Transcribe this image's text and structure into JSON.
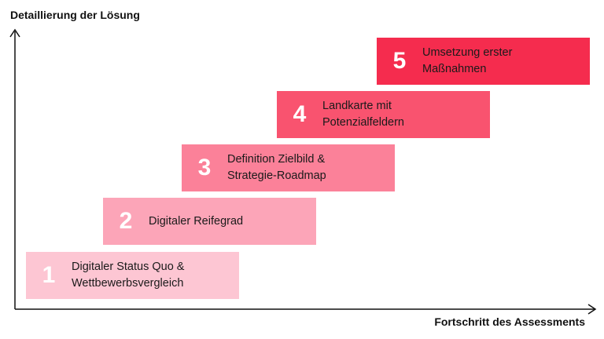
{
  "y_axis_title": "Detaillierung der Lösung",
  "x_axis_title": "Fortschritt des Assessments",
  "steps": [
    {
      "number": "1",
      "label": "Digitaler Status Quo &\nWettbewerbsvergleich",
      "color": "#fdc6d3"
    },
    {
      "number": "2",
      "label": "Digitaler Reifegrad",
      "color": "#fca5b8"
    },
    {
      "number": "3",
      "label": "Definition Zielbild &\nStrategie-Roadmap",
      "color": "#fb8199"
    },
    {
      "number": "4",
      "label": "Landkarte mit\nPotenzialfeldern",
      "color": "#f9536f"
    },
    {
      "number": "5",
      "label": "Umsetzung erster\nMaßnahmen",
      "color": "#f52c4e"
    }
  ]
}
